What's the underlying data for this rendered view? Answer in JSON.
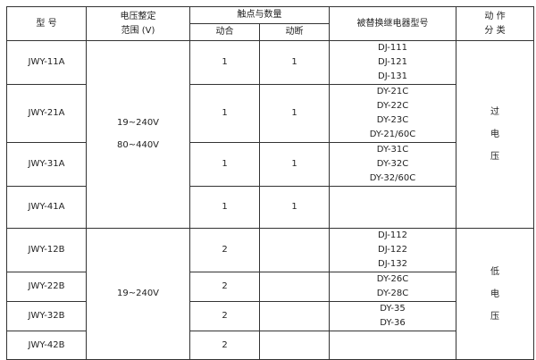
{
  "headers": {
    "model": "型  号",
    "voltage_range": [
      "电压整定",
      "范围 (V)"
    ],
    "contacts": "触点与数量",
    "contact_make": "动合",
    "contact_break": "动断",
    "replaced": "被替换继电器型号",
    "action": [
      "动 作",
      "分 类"
    ]
  },
  "groups": [
    {
      "voltage": [
        "19~240V",
        "80~440V"
      ],
      "action": [
        "过",
        "电",
        "压"
      ],
      "rows": [
        {
          "model": "JWY-11A",
          "make": "1",
          "break": "1",
          "replaced": [
            "DJ-111",
            "DJ-121",
            "DJ-131"
          ]
        },
        {
          "model": "JWY-21A",
          "make": "1",
          "break": "1",
          "replaced": [
            "DY-21C",
            "DY-22C",
            "DY-23C",
            "DY-21/60C"
          ]
        },
        {
          "model": "JWY-31A",
          "make": "1",
          "break": "1",
          "replaced": [
            "DY-31C",
            "DY-32C",
            "DY-32/60C"
          ]
        },
        {
          "model": "JWY-41A",
          "make": "1",
          "break": "1",
          "replaced": []
        }
      ]
    },
    {
      "voltage": [
        "19~240V"
      ],
      "action": [
        "低",
        "电",
        "压"
      ],
      "rows": [
        {
          "model": "JWY-12B",
          "make": "2",
          "break": "",
          "replaced": [
            "DJ-112",
            "DJ-122",
            "DJ-132"
          ]
        },
        {
          "model": "JWY-22B",
          "make": "2",
          "break": "",
          "replaced": [
            "DY-26C",
            "DY-28C"
          ]
        },
        {
          "model": "JWY-32B",
          "make": "2",
          "break": "",
          "replaced": [
            "DY-35",
            "DY-36"
          ]
        },
        {
          "model": "JWY-42B",
          "make": "2",
          "break": "",
          "replaced": []
        }
      ]
    }
  ]
}
